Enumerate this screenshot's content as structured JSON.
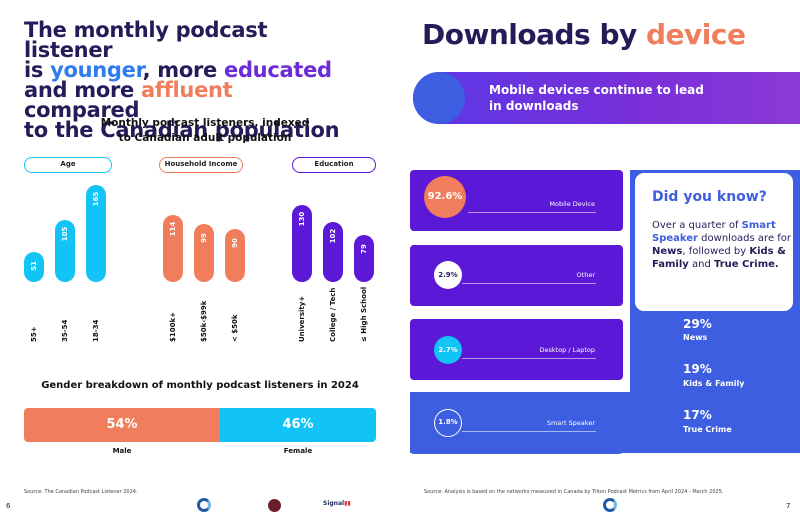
{
  "left_page": {
    "headline": {
      "p1": "The monthly podcast listener",
      "p2": "is ",
      "younger": "younger",
      "p3": ", more ",
      "educated": "educated",
      "p4": "and more ",
      "affluent": "affluent",
      "p5": " compared",
      "p6": "to the Canadian population"
    },
    "chart_title_line1": "Monthly podcast listeners, indexed",
    "chart_title_line2": "to Canadian adult population",
    "groups": {
      "age": "Age",
      "income": "Household Income",
      "education": "Education"
    },
    "gender_title": "Gender breakdown of monthly podcast listeners in 2024",
    "gender": {
      "male_pct": "54%",
      "female_pct": "46%",
      "male_label": "Male",
      "female_label": "Female"
    },
    "source": "Source: The Canadian Podcast Listener 2024.",
    "page_number": "6"
  },
  "chart_data": {
    "type": "bar",
    "title": "Monthly podcast listeners, indexed to Canadian adult population",
    "groups": [
      {
        "name": "Age",
        "categories": [
          "55+",
          "35-54",
          "18-34"
        ],
        "values": [
          51,
          105,
          165
        ],
        "color": "#12c3f5"
      },
      {
        "name": "Household Income",
        "categories": [
          "$100k+",
          "$50k-$99k",
          "< $50k"
        ],
        "values": [
          114,
          99,
          90
        ],
        "color": "#f07d5c"
      },
      {
        "name": "Education",
        "categories": [
          "University+",
          "College / Tech",
          "≤ High School"
        ],
        "values": [
          130,
          102,
          79
        ],
        "color": "#5b18d6"
      }
    ]
  },
  "right_page": {
    "title_main": "Downloads by ",
    "title_accent": "device",
    "banner_line1": "Mobile devices continue to lead",
    "banner_line2": "in downloads",
    "devices": [
      {
        "pct": "92.6%",
        "label": "Mobile Device",
        "value": 92.6
      },
      {
        "pct": "2.9%",
        "label": "Other",
        "value": 2.9
      },
      {
        "pct": "2.7%",
        "label": "Desktop / Laptop",
        "value": 2.7
      },
      {
        "pct": "1.8%",
        "label": "Smart Speaker",
        "value": 1.8
      }
    ],
    "did_you_know": {
      "title": "Did you know?",
      "t1": "Over a quarter of ",
      "t2": "Smart Speaker",
      "t3": " downloads are for ",
      "t4": "News",
      "t5": ", followed by ",
      "t6": "Kids & Family",
      "t7": " and ",
      "t8": "True Crime."
    },
    "stats": [
      {
        "pct": "29%",
        "label": "News"
      },
      {
        "pct": "19%",
        "label": "Kids & Family"
      },
      {
        "pct": "17%",
        "label": "True Crime"
      }
    ],
    "source": "Source: Analysis is based on the networks measured in Canada by Triton Podcast Metrics from April 2024 - March 2025.",
    "page_number": "7"
  },
  "footer_logos": {
    "logo_3": "Signal"
  },
  "colors": {
    "navy": "#241c58",
    "cyan": "#12c3f5",
    "coral": "#f07d5c",
    "purple": "#5b18d6",
    "blue": "#3d5ee0"
  }
}
